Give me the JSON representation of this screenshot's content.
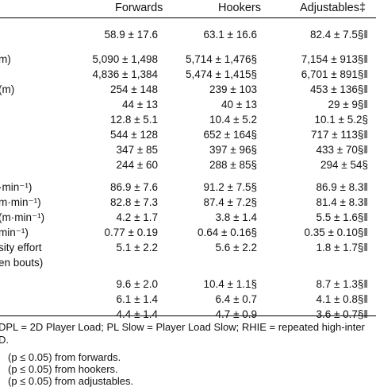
{
  "header": {
    "col1": "Forwards",
    "col2": "Hookers",
    "col3": "Adjustables‡"
  },
  "rows": [
    {
      "label": "",
      "v1": "58.9 ± 17.6",
      "v2": "63.1 ± 16.6",
      "v3": "82.4 ± 7.5§‖"
    },
    {
      "label": "m)",
      "v1": "5,090 ± 1,498",
      "v2": "5,714 ± 1,476§",
      "v3": "7,154 ± 913§‖"
    },
    {
      "label": "",
      "v1": "4,836 ± 1,384",
      "v2": "5,474 ± 1,415§",
      "v3": "6,701 ± 891§‖"
    },
    {
      "label": "(m)",
      "v1": "254 ± 148",
      "v2": "239 ± 103",
      "v3": "453 ± 136§‖"
    },
    {
      "label": "",
      "v1": "44 ± 13",
      "v2": "40 ± 13",
      "v3": "29 ± 9§‖"
    },
    {
      "label": "",
      "v1": "12.8 ± 5.1",
      "v2": "10.4 ± 5.2",
      "v3": "10.1 ± 5.2§"
    },
    {
      "label": "",
      "v1": "544 ± 128",
      "v2": "652 ± 164§",
      "v3": "717 ± 113§‖"
    },
    {
      "label": "",
      "v1": "347 ± 85",
      "v2": "397 ± 96§",
      "v3": "433 ± 70§‖"
    },
    {
      "label": "",
      "v1": "244 ± 60",
      "v2": "288 ± 85§",
      "v3": "294 ± 54§"
    },
    {
      "label": "·min⁻¹)",
      "v1": "86.9 ± 7.6",
      "v2": "91.2 ± 7.5§",
      "v3": "86.9 ± 8.3‖"
    },
    {
      "label": "m·min⁻¹)",
      "v1": "82.8 ± 7.3",
      "v2": "87.4 ± 7.2§",
      "v3": "81.4 ± 8.3‖"
    },
    {
      "label": "(m·min⁻¹)",
      "v1": "4.2 ± 1.7",
      "v2": "3.8 ± 1.4",
      "v3": "5.5 ± 1.6§‖"
    },
    {
      "label": "min⁻¹)",
      "v1": "0.77 ± 0.19",
      "v2": "0.64 ± 0.16§",
      "v3": "0.35 ± 0.10§‖"
    },
    {
      "label": "sity effort",
      "v1": "5.1 ± 2.2",
      "v2": "5.6 ± 2.2",
      "v3": "1.8 ± 1.7§‖"
    },
    {
      "label": "en bouts)",
      "v1": "",
      "v2": "",
      "v3": ""
    },
    {
      "label": "",
      "v1": "9.6 ± 2.0",
      "v2": "10.4 ± 1.1§",
      "v3": "8.7 ± 1.3§‖"
    },
    {
      "label": "",
      "v1": "6.1 ± 1.4",
      "v2": "6.4 ± 0.7",
      "v3": "4.1 ± 0.8§‖"
    },
    {
      "label": "",
      "v1": "4.4 ± 1.4",
      "v2": "4.7 ± 0.9",
      "v3": "3.6 ± 0.7§‖"
    }
  ],
  "footnotes": {
    "abbrev": "DPL = 2D Player Load; PL Slow = Player Load Slow; RHIE = repeated high-inter",
    "tail": "D.",
    "f1": "(p ≤ 0.05) from forwards.",
    "f2": "(p ≤ 0.05) from hookers.",
    "f3": "(p ≤ 0.05) from adjustables."
  }
}
